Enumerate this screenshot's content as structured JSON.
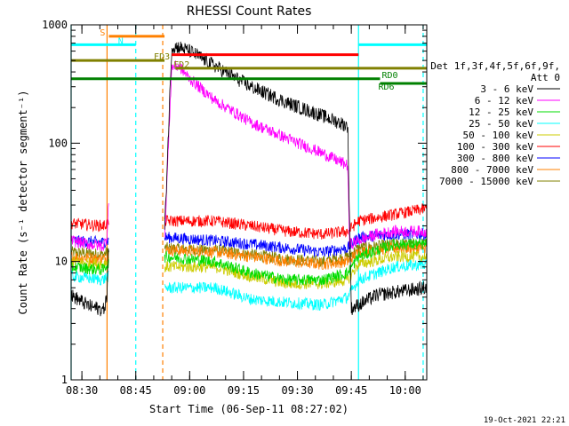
{
  "chart_data": {
    "type": "line",
    "title": "RHESSI Count Rates",
    "xlabel": "Start Time (06-Sep-11 08:27:02)",
    "ylabel": "Count Rate (s⁻¹ detector segment⁻¹)",
    "yscale": "log",
    "ylim": [
      1,
      1000
    ],
    "xlim_minutes": [
      0,
      99
    ],
    "x_tick_labels": [
      "08:30",
      "08:45",
      "09:00",
      "09:15",
      "09:30",
      "09:45",
      "10:00"
    ],
    "x_tick_minutes": [
      3,
      18,
      33,
      48,
      63,
      78,
      93
    ],
    "y_tick_labels": [
      "1",
      "10",
      "100",
      "1000"
    ],
    "y_tick_values": [
      1,
      10,
      100,
      1000
    ],
    "timestamp": "19-Oct-2021 22:21",
    "legend": {
      "header": [
        "Det 1f,3f,4f,5f,6f,9f,",
        "Att 0"
      ],
      "entries": [
        {
          "label": "3 - 6 keV",
          "color": "#000000"
        },
        {
          "label": "6 - 12 keV",
          "color": "#ff00ff"
        },
        {
          "label": "12 - 25 keV",
          "color": "#00dd00"
        },
        {
          "label": "25 - 50 keV",
          "color": "#00ffff"
        },
        {
          "label": "50 - 100 keV",
          "color": "#cccc00"
        },
        {
          "label": "100 - 300 keV",
          "color": "#ff0000"
        },
        {
          "label": "300 - 800 keV",
          "color": "#0000ff"
        },
        {
          "label": "800 - 7000 keV",
          "color": "#ff8000"
        },
        {
          "label": "7000 - 15000 keV",
          "color": "#808000"
        }
      ]
    },
    "gaps_minutes": [
      [
        10.5,
        26
      ]
    ],
    "series": [
      {
        "name": "3 - 6 keV",
        "color": "#000000",
        "points": [
          [
            0,
            5.2
          ],
          [
            5,
            4.2
          ],
          [
            9,
            3.9
          ],
          [
            10,
            5
          ],
          [
            10.3,
            12
          ],
          [
            26,
            17
          ],
          [
            28,
            650
          ],
          [
            30,
            650
          ],
          [
            33,
            600
          ],
          [
            40,
            450
          ],
          [
            50,
            300
          ],
          [
            60,
            220
          ],
          [
            70,
            170
          ],
          [
            77,
            140
          ],
          [
            78,
            4
          ],
          [
            80,
            4.3
          ],
          [
            85,
            5.2
          ],
          [
            90,
            5.5
          ],
          [
            99,
            6
          ]
        ]
      },
      {
        "name": "6 - 12 keV",
        "color": "#ff00ff",
        "points": [
          [
            0,
            15
          ],
          [
            5,
            14
          ],
          [
            9,
            13.5
          ],
          [
            10,
            16
          ],
          [
            10.3,
            30
          ],
          [
            26,
            15
          ],
          [
            28,
            440
          ],
          [
            30,
            450
          ],
          [
            33,
            350
          ],
          [
            40,
            230
          ],
          [
            50,
            150
          ],
          [
            60,
            110
          ],
          [
            70,
            82
          ],
          [
            77,
            65
          ],
          [
            77.5,
            14
          ],
          [
            80,
            15
          ],
          [
            85,
            17
          ],
          [
            90,
            18
          ],
          [
            99,
            18
          ]
        ]
      },
      {
        "name": "12 - 25 keV",
        "color": "#00dd00",
        "points": [
          [
            0,
            9
          ],
          [
            9,
            8.5
          ],
          [
            10,
            9.5
          ],
          [
            26,
            11
          ],
          [
            40,
            10
          ],
          [
            50,
            8
          ],
          [
            60,
            7
          ],
          [
            70,
            7
          ],
          [
            77,
            8
          ],
          [
            80,
            11
          ],
          [
            90,
            14
          ],
          [
            99,
            14
          ]
        ]
      },
      {
        "name": "25 - 50 keV",
        "color": "#00ffff",
        "points": [
          [
            0,
            7.5
          ],
          [
            9,
            7
          ],
          [
            10,
            7.5
          ],
          [
            26,
            6
          ],
          [
            40,
            6
          ],
          [
            50,
            4.8
          ],
          [
            60,
            4.5
          ],
          [
            70,
            4.3
          ],
          [
            77,
            5
          ],
          [
            80,
            7
          ],
          [
            90,
            9
          ],
          [
            99,
            9.5
          ]
        ]
      },
      {
        "name": "50 - 100 keV",
        "color": "#cccc00",
        "points": [
          [
            0,
            10
          ],
          [
            9,
            9.5
          ],
          [
            10,
            10
          ],
          [
            26,
            9
          ],
          [
            40,
            9
          ],
          [
            50,
            7.5
          ],
          [
            60,
            6.5
          ],
          [
            70,
            6.5
          ],
          [
            77,
            7
          ],
          [
            80,
            9.5
          ],
          [
            90,
            11
          ],
          [
            99,
            11
          ]
        ]
      },
      {
        "name": "100 - 300 keV",
        "color": "#ff0000",
        "points": [
          [
            0,
            21
          ],
          [
            9,
            20
          ],
          [
            10,
            21
          ],
          [
            26,
            22
          ],
          [
            40,
            22
          ],
          [
            50,
            20
          ],
          [
            60,
            18
          ],
          [
            70,
            17
          ],
          [
            77,
            18
          ],
          [
            80,
            22
          ],
          [
            90,
            25
          ],
          [
            99,
            28
          ]
        ]
      },
      {
        "name": "300 - 800 keV",
        "color": "#0000ff",
        "points": [
          [
            0,
            15
          ],
          [
            9,
            14.5
          ],
          [
            10,
            15
          ],
          [
            26,
            16
          ],
          [
            40,
            15
          ],
          [
            50,
            14
          ],
          [
            60,
            13
          ],
          [
            70,
            12
          ],
          [
            77,
            13
          ],
          [
            80,
            16
          ],
          [
            90,
            17
          ],
          [
            99,
            17
          ]
        ]
      },
      {
        "name": "800 - 7000 keV",
        "color": "#ff8000",
        "points": [
          [
            0,
            11
          ],
          [
            9,
            10.5
          ],
          [
            10,
            11
          ],
          [
            26,
            12.5
          ],
          [
            40,
            12
          ],
          [
            50,
            11
          ],
          [
            60,
            10
          ],
          [
            70,
            9.5
          ],
          [
            77,
            10
          ],
          [
            80,
            12
          ],
          [
            90,
            13
          ],
          [
            99,
            13
          ]
        ]
      },
      {
        "name": "7000 - 15000 keV",
        "color": "#808000",
        "points": [
          [
            0,
            12
          ],
          [
            9,
            11.5
          ],
          [
            10,
            12
          ],
          [
            26,
            13
          ],
          [
            40,
            12.5
          ],
          [
            50,
            11.5
          ],
          [
            60,
            10.5
          ],
          [
            70,
            10
          ],
          [
            77,
            11
          ],
          [
            80,
            13
          ],
          [
            90,
            14
          ],
          [
            99,
            14
          ]
        ]
      }
    ],
    "flag_bars": [
      {
        "label": "S",
        "color": "#ff8000",
        "x_start": 10.5,
        "x_end": 26,
        "y": 800
      },
      {
        "label": "N",
        "color": "#00ffff",
        "x_start": 0,
        "x_end": 18,
        "y": 680
      },
      {
        "label": "N",
        "color": "#00ffff",
        "x_start": 80,
        "x_end": 99,
        "y": 680
      },
      {
        "label": "",
        "color": "#ff0000",
        "x_start": 28,
        "x_end": 80,
        "y": 560
      },
      {
        "label": "FD2",
        "color": "#808000",
        "x_start": 29,
        "x_end": 99,
        "y": 430
      },
      {
        "label": "FD3",
        "color": "#808000",
        "x_start": 0,
        "x_end": 26,
        "y": 500
      },
      {
        "label": "RD0",
        "color": "#008000",
        "x_start": 0,
        "x_end": 86,
        "y": 350
      },
      {
        "label": "RD6",
        "color": "#008000",
        "x_start": 86,
        "x_end": 99,
        "y": 320
      }
    ],
    "vertical_markers": [
      {
        "x": 10,
        "color": "#ff8000",
        "style": "solid"
      },
      {
        "x": 18,
        "color": "#00ffff",
        "style": "dashed"
      },
      {
        "x": 25.5,
        "color": "#ff8000",
        "style": "dashed"
      },
      {
        "x": 80,
        "color": "#00ffff",
        "style": "solid"
      },
      {
        "x": 98,
        "color": "#00ffff",
        "style": "dashed"
      },
      {
        "x": 0,
        "color": "#00ffff",
        "style": "solid"
      }
    ]
  }
}
